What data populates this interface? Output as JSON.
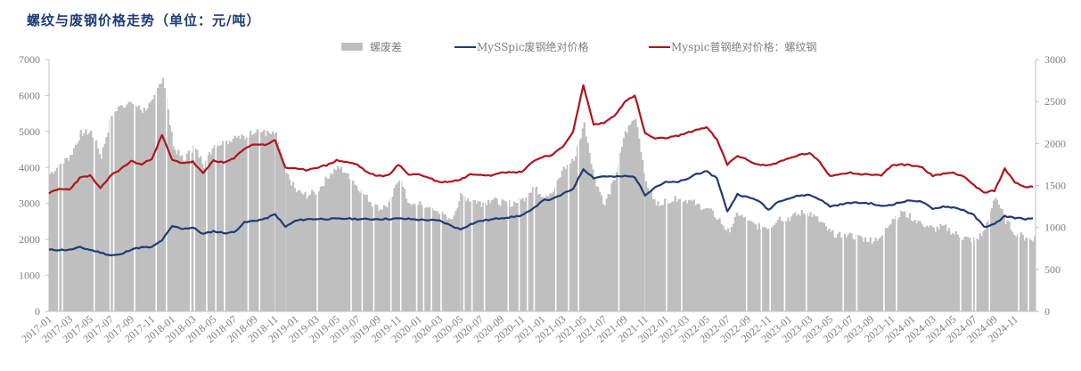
{
  "title": "螺纹与废钢价格走势（单位：元/吨）",
  "legend": [
    {
      "label": "螺废差",
      "type": "bar",
      "color": "#bfbfbf"
    },
    {
      "label": "MySSpic废钢绝对价格",
      "type": "line",
      "color": "#1f3b74"
    },
    {
      "label": "Myspic普钢绝对价格：螺纹钢",
      "type": "line",
      "color": "#b0141e"
    }
  ],
  "colors": {
    "spread": "#bfbfbf",
    "scrap": "#1f3b74",
    "rebar": "#b0141e",
    "axis": "#bfbfbf",
    "title": "#1f3b7a"
  },
  "chart_data": {
    "type": "line+bar",
    "title": "螺纹与废钢价格走势（单位：元/吨）",
    "xlabel": "",
    "ylabel_left": "",
    "ylabel_right": "",
    "ylim_left": [
      0,
      7000
    ],
    "ylim_right": [
      0,
      3000
    ],
    "yticks_left": [
      0,
      1000,
      2000,
      3000,
      4000,
      5000,
      6000,
      7000
    ],
    "yticks_right": [
      0,
      500,
      1000,
      1500,
      2000,
      2500,
      3000
    ],
    "grid": false,
    "legend_position": "top",
    "xtick_labels": [
      "2017-01",
      "2017-03",
      "2017-05",
      "2017-07",
      "2017-09",
      "2017-11",
      "2018-01",
      "2018-03",
      "2018-05",
      "2018-07",
      "2018-09",
      "2018-11",
      "2019-01",
      "2019-03",
      "2019-05",
      "2019-07",
      "2019-09",
      "2019-11",
      "2020-01",
      "2020-03",
      "2020-05",
      "2020-07",
      "2020-09",
      "2020-11",
      "2021-01",
      "2021-03",
      "2021-05",
      "2021-07",
      "2021-09",
      "2021-11",
      "2022-01",
      "2022-03",
      "2022-05",
      "2022-07",
      "2022-09",
      "2022-11",
      "2023-01",
      "2023-03",
      "2023-05",
      "2023-07",
      "2023-09",
      "2023-11",
      "2024-01",
      "2024-03",
      "2024-05",
      "2024-07",
      "2024-09",
      "2024-11"
    ],
    "x": [
      "2017-01",
      "2017-02",
      "2017-03",
      "2017-04",
      "2017-05",
      "2017-06",
      "2017-07",
      "2017-08",
      "2017-09",
      "2017-10",
      "2017-11",
      "2017-12",
      "2018-01",
      "2018-02",
      "2018-03",
      "2018-04",
      "2018-05",
      "2018-06",
      "2018-07",
      "2018-08",
      "2018-09",
      "2018-10",
      "2018-11",
      "2018-12",
      "2019-01",
      "2019-02",
      "2019-03",
      "2019-04",
      "2019-05",
      "2019-06",
      "2019-07",
      "2019-08",
      "2019-09",
      "2019-10",
      "2019-11",
      "2019-12",
      "2020-01",
      "2020-02",
      "2020-03",
      "2020-04",
      "2020-05",
      "2020-06",
      "2020-07",
      "2020-08",
      "2020-09",
      "2020-10",
      "2020-11",
      "2020-12",
      "2021-01",
      "2021-02",
      "2021-03",
      "2021-04",
      "2021-05",
      "2021-06",
      "2021-07",
      "2021-08",
      "2021-09",
      "2021-10",
      "2021-11",
      "2021-12",
      "2022-01",
      "2022-02",
      "2022-03",
      "2022-04",
      "2022-05",
      "2022-06",
      "2022-07",
      "2022-08",
      "2022-09",
      "2022-10",
      "2022-11",
      "2022-12",
      "2023-01",
      "2023-02",
      "2023-03",
      "2023-04",
      "2023-05",
      "2023-06",
      "2023-07",
      "2023-08",
      "2023-09",
      "2023-10",
      "2023-11",
      "2023-12",
      "2024-01",
      "2024-02",
      "2024-03",
      "2024-04",
      "2024-05",
      "2024-06",
      "2024-07",
      "2024-08",
      "2024-09",
      "2024-10",
      "2024-11",
      "2024-12"
    ],
    "series": [
      {
        "name": "螺废差",
        "type": "bar",
        "axis": "right",
        "values": [
          1640,
          1750,
          1850,
          2120,
          2140,
          1850,
          2330,
          2460,
          2490,
          2390,
          2490,
          2810,
          1960,
          1800,
          1960,
          1750,
          1980,
          2010,
          2070,
          2070,
          2170,
          2120,
          2100,
          1640,
          1430,
          1380,
          1430,
          1590,
          1720,
          1640,
          1480,
          1330,
          1220,
          1270,
          1590,
          1250,
          1270,
          1220,
          1170,
          1060,
          1380,
          1330,
          1290,
          1330,
          1290,
          1290,
          1330,
          1480,
          1380,
          1430,
          1700,
          1800,
          2230,
          1590,
          1270,
          1590,
          2120,
          2330,
          1540,
          1270,
          1330,
          1330,
          1330,
          1270,
          1220,
          1110,
          950,
          1170,
          1060,
          1010,
          1010,
          1110,
          1110,
          1170,
          1170,
          1060,
          930,
          900,
          900,
          870,
          850,
          900,
          1110,
          1170,
          1110,
          1040,
          980,
          1010,
          930,
          870,
          850,
          950,
          1380,
          1080,
          930,
          870
        ]
      },
      {
        "name": "MySSpic废钢绝对价格",
        "type": "line",
        "axis": "left",
        "values": [
          1710,
          1710,
          1710,
          1780,
          1710,
          1640,
          1560,
          1580,
          1730,
          1780,
          1780,
          1980,
          2370,
          2300,
          2330,
          2150,
          2230,
          2180,
          2200,
          2470,
          2520,
          2570,
          2700,
          2350,
          2520,
          2560,
          2570,
          2570,
          2570,
          2580,
          2570,
          2560,
          2570,
          2570,
          2580,
          2570,
          2550,
          2540,
          2520,
          2400,
          2280,
          2420,
          2520,
          2550,
          2600,
          2620,
          2670,
          2820,
          3090,
          3120,
          3260,
          3410,
          3960,
          3710,
          3760,
          3740,
          3760,
          3740,
          3240,
          3460,
          3590,
          3590,
          3660,
          3830,
          3880,
          3710,
          2770,
          3260,
          3170,
          3090,
          2820,
          3070,
          3140,
          3220,
          3240,
          3120,
          2920,
          2970,
          3020,
          3020,
          3000,
          2920,
          2970,
          3040,
          3090,
          3040,
          2840,
          2920,
          2890,
          2820,
          2670,
          2350,
          2420,
          2650,
          2600,
          2570
        ]
      },
      {
        "name": "Myspic普钢绝对价格：螺纹钢",
        "type": "line",
        "axis": "left",
        "values": [
          3290,
          3400,
          3390,
          3710,
          3780,
          3410,
          3780,
          3960,
          4180,
          4080,
          4250,
          4900,
          4200,
          4130,
          4160,
          3830,
          4200,
          4130,
          4250,
          4530,
          4650,
          4630,
          4750,
          4000,
          3960,
          3930,
          4000,
          4060,
          4200,
          4150,
          4080,
          3860,
          3760,
          3780,
          4080,
          3810,
          3810,
          3710,
          3590,
          3610,
          3660,
          3810,
          3810,
          3780,
          3880,
          3860,
          3880,
          4150,
          4300,
          4350,
          4580,
          5000,
          6280,
          5190,
          5240,
          5440,
          5810,
          6010,
          4950,
          4800,
          4820,
          4870,
          4950,
          5050,
          5120,
          4770,
          4080,
          4330,
          4200,
          4080,
          4060,
          4150,
          4250,
          4350,
          4400,
          4150,
          3760,
          3830,
          3860,
          3810,
          3810,
          3780,
          4060,
          4080,
          4060,
          4000,
          3760,
          3830,
          3860,
          3760,
          3510,
          3290,
          3360,
          3960,
          3590,
          3460
        ]
      }
    ]
  }
}
